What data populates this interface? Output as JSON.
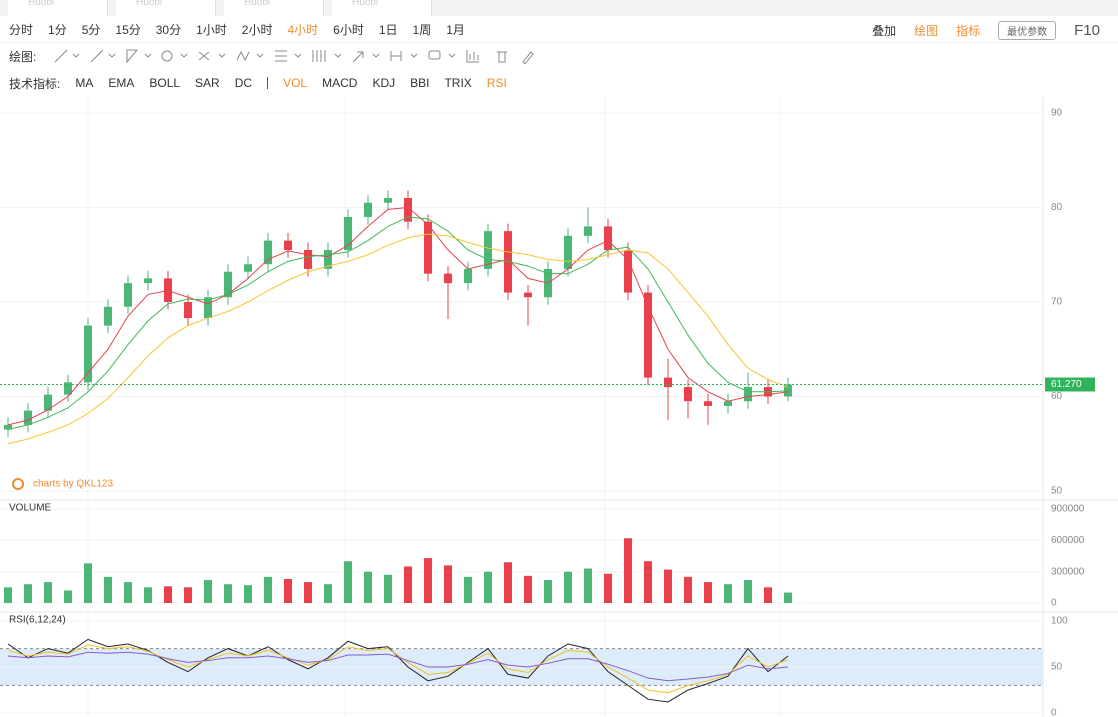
{
  "tabs": [
    "Huobi",
    "Huobi",
    "Huobi",
    "Huobi"
  ],
  "toolbar": {
    "intervals": [
      {
        "label": "分时"
      },
      {
        "label": "1分"
      },
      {
        "label": "5分"
      },
      {
        "label": "15分"
      },
      {
        "label": "30分"
      },
      {
        "label": "1小时"
      },
      {
        "label": "2小时"
      },
      {
        "label": "4小时",
        "active": true
      },
      {
        "label": "6小时"
      },
      {
        "label": "1日"
      },
      {
        "label": "1周"
      },
      {
        "label": "1月"
      }
    ],
    "actions": [
      {
        "label": "叠加"
      },
      {
        "label": "绘图",
        "active": true
      },
      {
        "label": "指标",
        "active": true
      }
    ],
    "preset_button": "最优参数",
    "f10": "F10",
    "draw_label": "绘图:",
    "indicator_label": "技术指标:",
    "main_indicators": [
      "MA",
      "EMA",
      "BOLL",
      "SAR",
      "DC"
    ],
    "sub_indicators": [
      {
        "label": "VOL",
        "active": true
      },
      {
        "label": "MACD"
      },
      {
        "label": "KDJ"
      },
      {
        "label": "BBI"
      },
      {
        "label": "TRIX"
      },
      {
        "label": "RSI",
        "active": true
      }
    ]
  },
  "watermark": "charts by QKL123",
  "chart_data": [
    {
      "type": "candlestick",
      "up_color": "#4cb676",
      "down_color": "#e8414b",
      "open": [
        56.5,
        57,
        58.5,
        60.2,
        61.5,
        67.5,
        69.5,
        72,
        72.5,
        70,
        68.3,
        70.5,
        73.2,
        74,
        76.5,
        75.5,
        73.5,
        75.5,
        79,
        80.5,
        81,
        78.5,
        73,
        72,
        73.5,
        77.5,
        71,
        70.5,
        73.5,
        77,
        78,
        75.5,
        71,
        62,
        61,
        59.5,
        59,
        59.5,
        61,
        60
      ],
      "high": [
        57.8,
        59.3,
        61,
        62.3,
        68.3,
        70.3,
        72.8,
        73.3,
        73.3,
        70.8,
        71.3,
        74,
        74.8,
        77.3,
        77.3,
        76.3,
        76.3,
        79.8,
        81.3,
        81.8,
        81.8,
        79.3,
        73.8,
        74.3,
        78.3,
        78.3,
        71.8,
        74.3,
        77.8,
        80,
        78.8,
        76.3,
        71.8,
        64,
        61.8,
        60.3,
        60.3,
        62.5,
        61.8,
        62
      ],
      "low": [
        55.7,
        56.2,
        57.7,
        59.4,
        60.7,
        66.7,
        68.7,
        71.2,
        69.2,
        67.5,
        67.5,
        69.7,
        72.4,
        73.2,
        74.7,
        72.7,
        72.7,
        74.7,
        78.2,
        79.7,
        77.7,
        72.2,
        68.2,
        71.2,
        72.7,
        70.2,
        67.5,
        69.7,
        72.7,
        76.2,
        74.7,
        70.2,
        61.2,
        57.5,
        57.7,
        57,
        58.2,
        58.7,
        59.2,
        59.5
      ],
      "close": [
        57,
        58.5,
        60.2,
        61.5,
        67.5,
        69.5,
        72,
        72.5,
        70,
        68.3,
        70.5,
        73.2,
        74,
        76.5,
        75.5,
        73.5,
        75.5,
        79,
        80.5,
        81,
        78.5,
        73,
        72,
        73.5,
        77.5,
        71,
        70.5,
        73.5,
        77,
        78,
        75.5,
        71,
        62,
        61,
        59.5,
        59,
        59.5,
        61,
        60,
        61.27
      ],
      "series": [
        {
          "color": "#e8414b",
          "values": [
            57,
            57.5,
            58.6,
            60,
            62.5,
            65,
            68.5,
            70.8,
            71.2,
            70.5,
            69.8,
            70.8,
            72.5,
            74.5,
            75.4,
            75,
            74.8,
            76,
            78,
            79.8,
            80,
            78.2,
            75.5,
            73.5,
            74,
            74.5,
            72.5,
            72,
            73.5,
            75.5,
            76.5,
            74.5,
            69.5,
            65,
            62,
            60.5,
            59.5,
            60,
            60.2,
            60.5
          ]
        },
        {
          "color": "#3fb85a",
          "values": [
            56.5,
            57,
            57.8,
            58.8,
            60.5,
            62.7,
            65.5,
            68,
            69.8,
            70.3,
            70.2,
            70.8,
            71.8,
            73.2,
            74.3,
            74.8,
            75,
            75.3,
            76.5,
            78,
            79,
            78.8,
            77.5,
            75.5,
            74.5,
            74.3,
            73.8,
            73,
            73,
            74,
            75.5,
            75.8,
            73.5,
            70,
            66.5,
            63.5,
            61.5,
            60.5,
            60.5,
            60.6
          ]
        },
        {
          "color": "#f5c531",
          "values": [
            55,
            55.5,
            56.2,
            57,
            58.2,
            59.8,
            62,
            64.3,
            66.2,
            67.5,
            68.3,
            69,
            70,
            71.2,
            72.3,
            73.2,
            73.8,
            74.3,
            75,
            76,
            76.8,
            77.2,
            77,
            76.3,
            75.7,
            75.3,
            75,
            74.5,
            74.3,
            74.5,
            75,
            75.5,
            75.2,
            73.5,
            71,
            68.5,
            65.5,
            63,
            61.8,
            61
          ]
        }
      ],
      "ylim": [
        50,
        90
      ],
      "yticks": [
        50,
        60,
        70,
        80,
        90
      ],
      "grid": true,
      "last_price": {
        "value": 61.27,
        "label": "61.270"
      },
      "last_price_color": "#2fb45a"
    },
    {
      "type": "bar",
      "title": "VOLUME",
      "values": [
        150000,
        180000,
        200000,
        120000,
        380000,
        250000,
        200000,
        150000,
        160000,
        150000,
        220000,
        180000,
        170000,
        250000,
        230000,
        200000,
        180000,
        400000,
        300000,
        270000,
        350000,
        430000,
        360000,
        250000,
        300000,
        390000,
        260000,
        220000,
        300000,
        330000,
        280000,
        620000,
        400000,
        320000,
        250000,
        200000,
        180000,
        220000,
        150000,
        100000
      ],
      "ylim": [
        0,
        900000
      ],
      "yticks": [
        0,
        300000,
        600000,
        900000
      ],
      "grid": true
    },
    {
      "type": "line",
      "title": "RSI(6,12,24)",
      "band": [
        30,
        70
      ],
      "band_color": "#dcecfb",
      "series": [
        {
          "color": "#222222",
          "values": [
            75,
            60,
            70,
            65,
            80,
            72,
            75,
            68,
            55,
            45,
            60,
            70,
            62,
            72,
            58,
            48,
            60,
            78,
            70,
            72,
            50,
            35,
            40,
            55,
            70,
            42,
            38,
            62,
            75,
            70,
            45,
            30,
            15,
            12,
            25,
            32,
            40,
            70,
            45,
            62
          ]
        },
        {
          "color": "#f0c020",
          "values": [
            68,
            62,
            66,
            64,
            74,
            70,
            72,
            67,
            58,
            50,
            58,
            65,
            62,
            68,
            60,
            52,
            58,
            72,
            68,
            70,
            55,
            42,
            44,
            54,
            65,
            48,
            44,
            58,
            68,
            66,
            50,
            38,
            25,
            22,
            30,
            35,
            42,
            62,
            50,
            58
          ]
        },
        {
          "color": "#8a5cd0",
          "values": [
            62,
            60,
            62,
            61,
            66,
            65,
            66,
            64,
            59,
            55,
            57,
            60,
            60,
            62,
            59,
            55,
            57,
            63,
            63,
            64,
            57,
            50,
            50,
            53,
            58,
            52,
            50,
            54,
            59,
            59,
            53,
            46,
            38,
            35,
            37,
            39,
            43,
            52,
            48,
            50
          ]
        }
      ],
      "ylim": [
        0,
        100
      ],
      "yticks": [
        0,
        50,
        100
      ],
      "grid": true
    }
  ]
}
